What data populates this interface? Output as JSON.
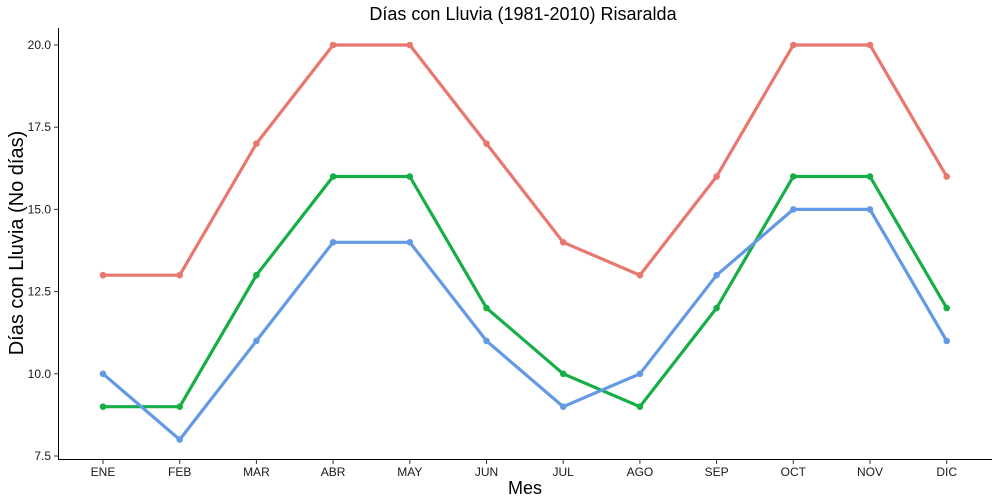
{
  "chart_data": {
    "type": "line",
    "title": "Días con Lluvia (1981-2010)  Risaralda",
    "xlabel": "Mes",
    "ylabel": "Días con Lluvia (No días)",
    "categories": [
      "ENE",
      "FEB",
      "MAR",
      "ABR",
      "MAY",
      "JUN",
      "JUL",
      "AGO",
      "SEP",
      "OCT",
      "NOV",
      "DIC"
    ],
    "ylim": [
      7.5,
      20.0
    ],
    "yticks": [
      7.5,
      10.0,
      12.5,
      15.0,
      17.5,
      20.0
    ],
    "ytick_labels": [
      "7.5",
      "10.0",
      "12.5",
      "15.0",
      "17.5",
      "20.0"
    ],
    "grid": false,
    "legend": "none",
    "series": [
      {
        "color": "#E8776F",
        "values": [
          13,
          13,
          17,
          20,
          20,
          17,
          14,
          13,
          16,
          20,
          20,
          16
        ]
      },
      {
        "color": "#16AE47",
        "values": [
          9,
          9,
          13,
          16,
          16,
          12,
          10,
          9,
          12,
          16,
          16,
          12
        ]
      },
      {
        "color": "#6499E3",
        "values": [
          10,
          8,
          11,
          14,
          14,
          11,
          9,
          10,
          13,
          15,
          15,
          11
        ]
      }
    ]
  }
}
